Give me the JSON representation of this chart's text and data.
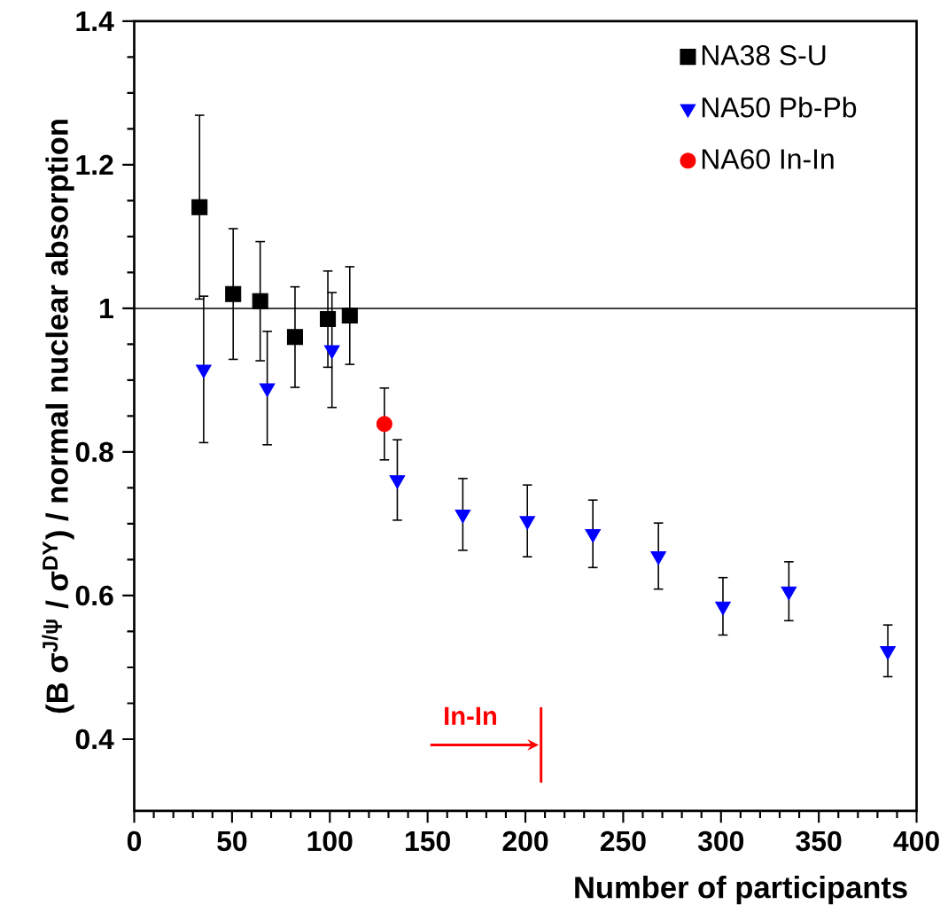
{
  "chart_data": {
    "type": "scatter",
    "xlabel": "Number of participants",
    "ylabel": "(B σ$^{J/ψ}$ / σ$^{DY}$) / normal nuclear absorption",
    "xlim": [
      0,
      400
    ],
    "ylim": [
      0.3,
      1.4
    ],
    "xticks": [
      0,
      50,
      100,
      150,
      200,
      250,
      300,
      350,
      400
    ],
    "yticks": [
      0.4,
      0.6,
      0.8,
      1,
      1.2,
      1.4
    ],
    "legend": "top right",
    "grid": false,
    "series": [
      {
        "name": "NA38 S-U",
        "color": "#000000",
        "marker": "square",
        "x": [
          33.4,
          50.6,
          64.4,
          82.2,
          99,
          110.2
        ],
        "values": [
          1.141,
          1.02,
          1.01,
          0.96,
          0.985,
          0.99
        ],
        "errors": [
          0.128,
          0.091,
          0.083,
          0.07,
          0.067,
          0.068
        ]
      },
      {
        "name": "NA50 Pb-Pb",
        "color": "#0000ff",
        "marker": "triangle",
        "x": [
          35.5,
          68,
          101.1,
          134.5,
          168,
          201,
          234.5,
          268,
          301,
          334.7,
          385.3
        ],
        "values": [
          0.915,
          0.889,
          0.942,
          0.761,
          0.713,
          0.704,
          0.686,
          0.655,
          0.585,
          0.606,
          0.523
        ],
        "errors": [
          0.102,
          0.079,
          0.08,
          0.056,
          0.05,
          0.05,
          0.047,
          0.046,
          0.04,
          0.041,
          0.036
        ]
      },
      {
        "name": "NA60 In-In",
        "color": "#ff0000",
        "marker": "circle",
        "x": [
          127.9
        ],
        "values": [
          0.839
        ],
        "errors": [
          0.05
        ]
      }
    ],
    "ref_lines": [
      {
        "axis": "y",
        "value": 1,
        "color": "#000000"
      },
      {
        "axis": "x",
        "value": 208,
        "label": "In-In",
        "color": "#ff0000"
      }
    ]
  }
}
